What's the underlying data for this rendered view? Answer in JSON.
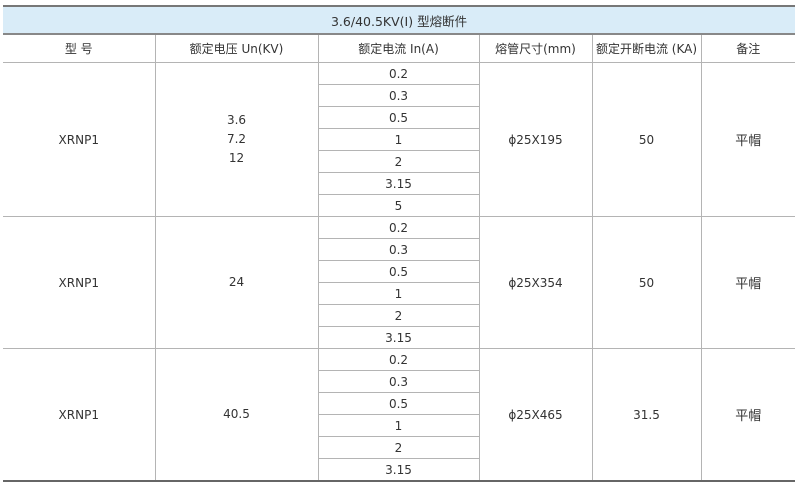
{
  "title": "3.6/40.5KV(I) 型熔断件",
  "headers": [
    "型 号",
    "额定电压 Un(KV)",
    "额定电流 In(A)",
    "熔管尺寸(mm)",
    "额定开断电流 (KA)",
    "备注"
  ],
  "groups": [
    {
      "model": "XRNP1",
      "voltage": [
        "3.6",
        "7.2",
        "12"
      ],
      "currents": [
        "0.2",
        "0.3",
        "0.5",
        "1",
        "2",
        "3.15",
        "5"
      ],
      "tube": "ϕ25X195",
      "breaking": "50",
      "note": "平帽"
    },
    {
      "model": "XRNP1",
      "voltage": [
        "24"
      ],
      "currents": [
        "0.2",
        "0.3",
        "0.5",
        "1",
        "2",
        "3.15"
      ],
      "tube": "ϕ25X354",
      "breaking": "50",
      "note": "平帽"
    },
    {
      "model": "XRNP1",
      "voltage": [
        "40.5"
      ],
      "currents": [
        "0.2",
        "0.3",
        "0.5",
        "1",
        "2",
        "3.15"
      ],
      "tube": "ϕ25X465",
      "breaking": "31.5",
      "note": "平帽"
    }
  ]
}
